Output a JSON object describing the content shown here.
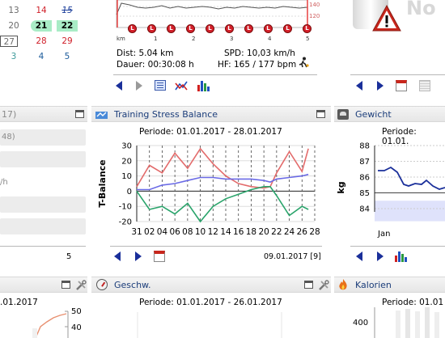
{
  "calendar": {
    "rows": [
      [
        {
          "v": "13",
          "c": "#6b6b6b"
        },
        {
          "v": "14",
          "c": "#d0202a"
        },
        {
          "v": "15",
          "c": "#1a3d9a",
          "strike": true
        }
      ],
      [
        {
          "v": "20",
          "c": "#6b6b6b"
        },
        {
          "v": "21",
          "c": "#000",
          "hl": "#a9ecc6"
        },
        {
          "v": "22",
          "c": "#000",
          "hl": "#a9ecc6"
        }
      ],
      [
        {
          "v": "27",
          "c": "#6b6b6b",
          "box": true
        },
        {
          "v": "28",
          "c": "#d0202a"
        },
        {
          "v": "29",
          "c": "#d0202a"
        }
      ],
      [
        {
          "v": "3",
          "c": "#3d9a9a"
        },
        {
          "v": "4",
          "c": "#1a5a9a"
        },
        {
          "v": "5",
          "c": "#1a5a9a"
        }
      ]
    ]
  },
  "route_chart": {
    "right_ticks": [
      "140",
      "120"
    ],
    "x_unit": "km",
    "x_ticks": [
      "1",
      "2",
      "3",
      "4",
      "5"
    ]
  },
  "activity": {
    "dist": "Dist: 5.04 km",
    "spd": "SPD: 10,03 km/h",
    "dauer": "Dauer: 00:30:08 h",
    "hf": "HF: 165 / 177 bpm"
  },
  "notice": {
    "text": "No"
  },
  "left_panel": {
    "title_frag": "17)",
    "row_frag": "48)",
    "unit_frag": "/h",
    "count": "5"
  },
  "tsb_panel": {
    "title": "Training Stress Balance",
    "period": "Periode: 01.01.2017 - 28.01.2017",
    "date_footer": "09.01.2017 [9]"
  },
  "gewicht_panel": {
    "title": "Gewicht",
    "period": "Periode: 01.01.",
    "ylabel": "kg",
    "y_ticks": [
      "88",
      "87",
      "86",
      "85",
      "84"
    ],
    "x_tick": "Jan"
  },
  "bottom": {
    "left_frag": ".01.2017",
    "left_tick": "50",
    "left_tick2": "40",
    "geschw_title": "Geschw.",
    "geschw_period": "Periode: 01.01.2017 - 26.01.2017",
    "kalorien_title": "Kalorien",
    "kalorien_period": "Periode: 01.01",
    "kalorien_tick": "400"
  },
  "chart_data": {
    "type": "line",
    "ylabel": "T-Balance",
    "ylim": [
      -20,
      30
    ],
    "y_ticks": [
      30,
      20,
      10,
      0,
      -10,
      -20
    ],
    "x_ticks": [
      "31",
      "02",
      "04",
      "06",
      "08",
      "10",
      "12",
      "14",
      "16",
      "18",
      "20",
      "22",
      "24",
      "26",
      "28"
    ],
    "x_range": [
      0,
      28
    ],
    "series": [
      {
        "color": "#e36b6b",
        "x": [
          0,
          2,
          4,
          6,
          8,
          10,
          12,
          14,
          16,
          18,
          20,
          21,
          22,
          24,
          26,
          27
        ],
        "values": [
          3,
          17,
          12,
          25,
          15,
          28,
          18,
          10,
          5,
          3,
          2,
          3,
          12,
          26,
          13,
          28
        ]
      },
      {
        "color": "#6a6ae6",
        "x": [
          0,
          2,
          4,
          6,
          8,
          10,
          12,
          14,
          16,
          18,
          20,
          21,
          22,
          24,
          26,
          27
        ],
        "values": [
          1,
          1,
          4,
          5,
          7,
          9,
          9,
          8,
          8,
          8,
          7,
          6,
          8,
          9,
          10,
          11
        ]
      },
      {
        "color": "#2aa46b",
        "x": [
          0,
          2,
          4,
          6,
          8,
          10,
          12,
          14,
          16,
          18,
          20,
          21,
          22,
          24,
          26,
          27
        ],
        "values": [
          0,
          -12,
          -10,
          -15,
          -8,
          -20,
          -10,
          -5,
          -2,
          1,
          3,
          3,
          -3,
          -16,
          -10,
          -12
        ]
      }
    ]
  },
  "colors": {
    "accent_blue": "#1a2f9a",
    "red_accent": "#c8261c"
  }
}
